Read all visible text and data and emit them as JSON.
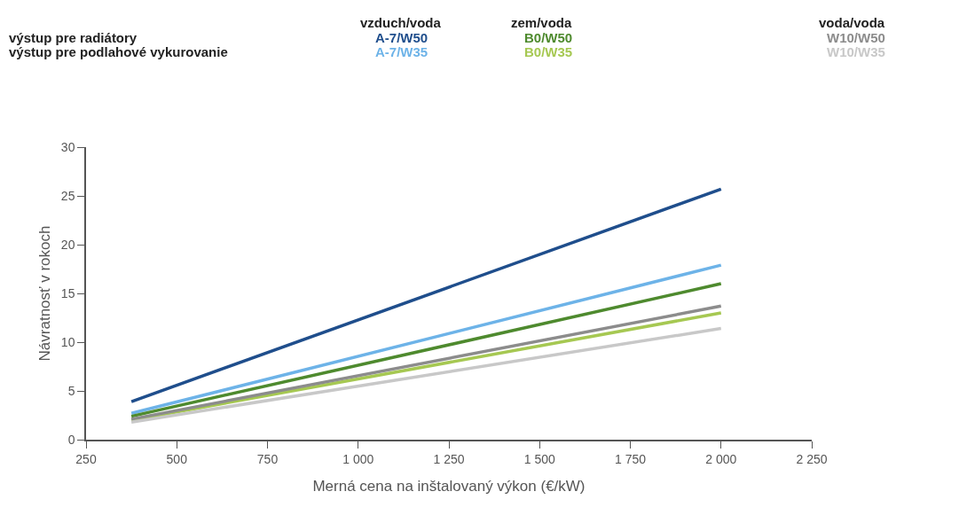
{
  "chart_data": {
    "type": "line",
    "xlabel": "Merná cena na inštalovaný výkon (€/kW)",
    "ylabel": "Návratnosť v rokoch",
    "annotations": [
      "vzduch/voda",
      "zem/voda",
      "voda/voda",
      "výstup pre radiátory",
      "výstup pre podlahové vykurovanie"
    ],
    "x": [
      375,
      2000
    ],
    "series": [
      {
        "name": "A-7/W50",
        "color": "#1f4e8c",
        "values": [
          3.9,
          25.7
        ]
      },
      {
        "name": "A-7/W35",
        "color": "#6db3e8",
        "values": [
          2.7,
          17.9
        ]
      },
      {
        "name": "B0/W50",
        "color": "#4e8a2e",
        "values": [
          2.4,
          16.0
        ]
      },
      {
        "name": "B0/W35",
        "color": "#a6c852",
        "values": [
          2.0,
          13.0
        ]
      },
      {
        "name": "W10/W50",
        "color": "#8c8c8c",
        "values": [
          2.1,
          13.7
        ]
      },
      {
        "name": "W10/W35",
        "color": "#c8c8c8",
        "values": [
          1.8,
          11.4
        ]
      }
    ],
    "xlim": [
      250,
      2250
    ],
    "xticks": [
      250,
      500,
      750,
      {
        "value": 1000,
        "label": "1 000"
      },
      {
        "value": 1250,
        "label": "1 250"
      },
      {
        "value": 1500,
        "label": "1 500"
      },
      {
        "value": 1750,
        "label": "1 750"
      },
      {
        "value": 2000,
        "label": "2 000"
      },
      {
        "value": 2250,
        "label": "2 250"
      }
    ],
    "ylim": [
      0,
      30
    ],
    "yticks": [
      0,
      5,
      10,
      15,
      20,
      25,
      30
    ],
    "legend": false,
    "marker": "none",
    "line_style": "solid"
  }
}
